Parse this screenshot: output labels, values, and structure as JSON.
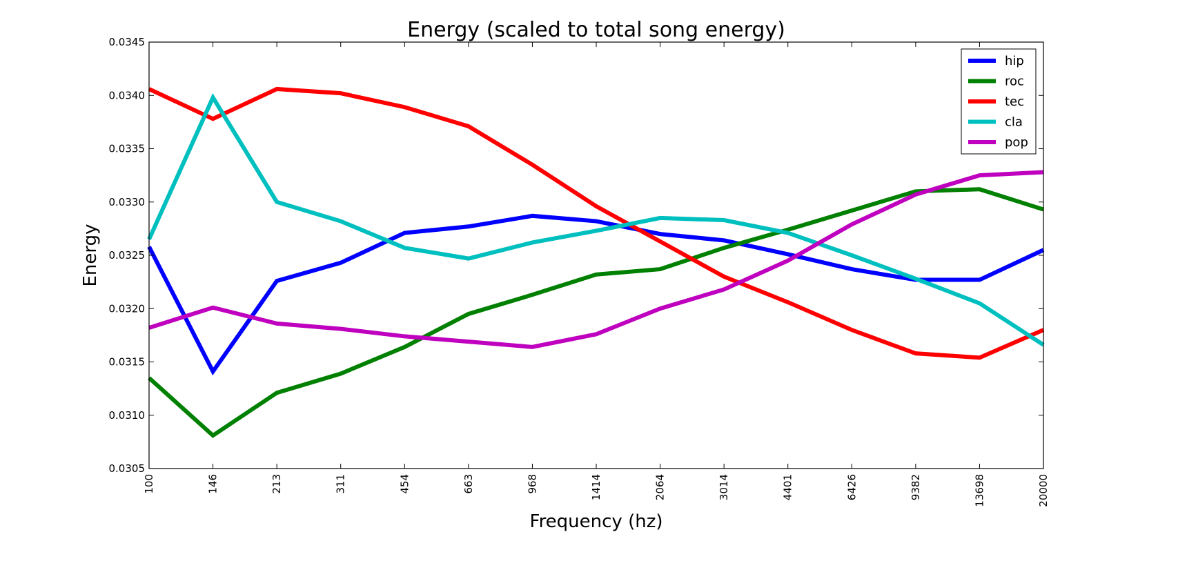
{
  "chart_data": {
    "type": "line",
    "title": "Energy (scaled to total song energy)",
    "xlabel": "Frequency (hz)",
    "ylabel": "Energy",
    "categories": [
      "100",
      "146",
      "213",
      "311",
      "454",
      "663",
      "968",
      "1414",
      "2064",
      "3014",
      "4401",
      "6426",
      "9382",
      "13698",
      "20000"
    ],
    "ylim": [
      0.0305,
      0.0345
    ],
    "yticks": [
      "0.0305",
      "0.0310",
      "0.0315",
      "0.0320",
      "0.0325",
      "0.0330",
      "0.0335",
      "0.0340",
      "0.0345"
    ],
    "grid": false,
    "legend_position": "top-right",
    "series": [
      {
        "name": "hip",
        "color": "#0000ff",
        "values": [
          0.03258,
          0.03141,
          0.03226,
          0.03243,
          0.03271,
          0.03277,
          0.03287,
          0.03282,
          0.0327,
          0.03264,
          0.03251,
          0.03237,
          0.03227,
          0.03227,
          0.03255
        ]
      },
      {
        "name": "roc",
        "color": "#008000",
        "values": [
          0.03135,
          0.03081,
          0.03121,
          0.03139,
          0.03164,
          0.03195,
          0.03213,
          0.03232,
          0.03237,
          0.03257,
          0.03274,
          0.03292,
          0.0331,
          0.03312,
          0.03293
        ]
      },
      {
        "name": "tec",
        "color": "#ff0000",
        "values": [
          0.03406,
          0.03378,
          0.03406,
          0.03402,
          0.03389,
          0.03371,
          0.03335,
          0.03296,
          0.03263,
          0.0323,
          0.03206,
          0.0318,
          0.03158,
          0.03154,
          0.0318
        ]
      },
      {
        "name": "cla",
        "color": "#00bfbf",
        "values": [
          0.03265,
          0.03398,
          0.033,
          0.03282,
          0.03257,
          0.03247,
          0.03262,
          0.03273,
          0.03285,
          0.03283,
          0.03271,
          0.0325,
          0.03228,
          0.03205,
          0.03166
        ]
      },
      {
        "name": "pop",
        "color": "#bf00bf",
        "values": [
          0.03182,
          0.03201,
          0.03186,
          0.03181,
          0.03174,
          0.03169,
          0.03164,
          0.03176,
          0.032,
          0.03218,
          0.03245,
          0.03279,
          0.03307,
          0.03325,
          0.03328
        ]
      }
    ]
  }
}
